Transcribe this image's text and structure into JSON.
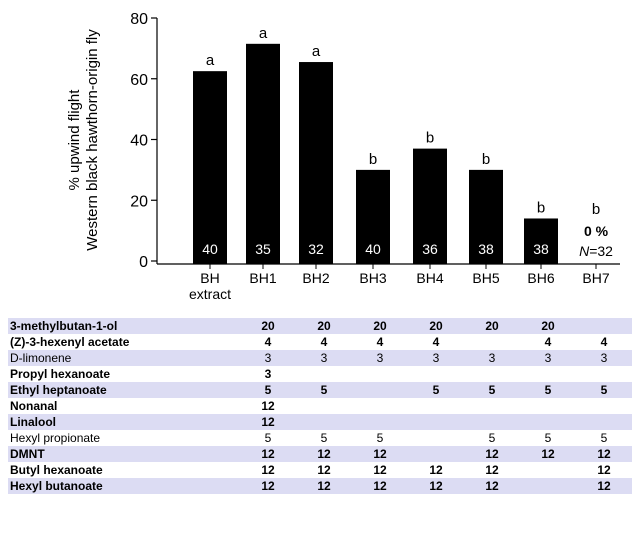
{
  "chart_data": {
    "type": "bar",
    "ylabel": "% upwind flight",
    "ylabel2": "Western black hawthorn-origin fly",
    "ylim": [
      0,
      80
    ],
    "yticks": [
      "0",
      "20",
      "40",
      "60",
      "80"
    ],
    "categories": [
      "BH extract",
      "BH1",
      "BH2",
      "BH3",
      "BH4",
      "BH5",
      "BH6",
      "BH7"
    ],
    "category_lines": [
      [
        "BH",
        "extract"
      ],
      [
        "BH1"
      ],
      [
        "BH2"
      ],
      [
        "BH3"
      ],
      [
        "BH4"
      ],
      [
        "BH5"
      ],
      [
        "BH6"
      ],
      [
        "BH7"
      ]
    ],
    "values": [
      62.5,
      71.5,
      65.5,
      30,
      37,
      30,
      14,
      0
    ],
    "letters": [
      "a",
      "a",
      "a",
      "b",
      "b",
      "b",
      "b",
      "b"
    ],
    "n": [
      "40",
      "35",
      "32",
      "40",
      "36",
      "38",
      "38",
      "32"
    ],
    "zero_label": "0 %",
    "n_prefix": "N",
    "n_equals": "=32",
    "bar_color": "#000000"
  },
  "table": {
    "band_color": "#dcdcf3",
    "rows": [
      {
        "name": "3-methylbutan-1-ol",
        "style": "bold",
        "values": [
          "20",
          "20",
          "20",
          "20",
          "20",
          "20",
          ""
        ]
      },
      {
        "name": "(Z)-3-hexenyl acetate",
        "style": "bold",
        "values": [
          "4",
          "4",
          "4",
          "4",
          "",
          "4",
          "4"
        ]
      },
      {
        "name": "D-limonene",
        "style": "thin",
        "values": [
          "3",
          "3",
          "3",
          "3",
          "3",
          "3",
          "3"
        ]
      },
      {
        "name": "Propyl hexanoate",
        "style": "bold",
        "values": [
          "3",
          "",
          "",
          "",
          "",
          "",
          ""
        ]
      },
      {
        "name": "Ethyl heptanoate",
        "style": "bold",
        "values": [
          "5",
          "5",
          "",
          "5",
          "5",
          "5",
          "5"
        ]
      },
      {
        "name": "Nonanal",
        "style": "bold",
        "values": [
          "12",
          "",
          "",
          "",
          "",
          "",
          ""
        ]
      },
      {
        "name": "Linalool",
        "style": "bold",
        "values": [
          "12",
          "",
          "",
          "",
          "",
          "",
          ""
        ]
      },
      {
        "name": "Hexyl propionate",
        "style": "thin",
        "values": [
          "5",
          "5",
          "5",
          "",
          "5",
          "5",
          "5"
        ]
      },
      {
        "name": "DMNT",
        "style": "bold",
        "values": [
          "12",
          "12",
          "12",
          "",
          "12",
          "12",
          "12"
        ]
      },
      {
        "name": "Butyl hexanoate",
        "style": "bold",
        "values": [
          "12",
          "12",
          "12",
          "12",
          "12",
          "",
          "12"
        ]
      },
      {
        "name": "Hexyl butanoate",
        "style": "bold",
        "values": [
          "12",
          "12",
          "12",
          "12",
          "12",
          "",
          "12"
        ]
      }
    ]
  }
}
